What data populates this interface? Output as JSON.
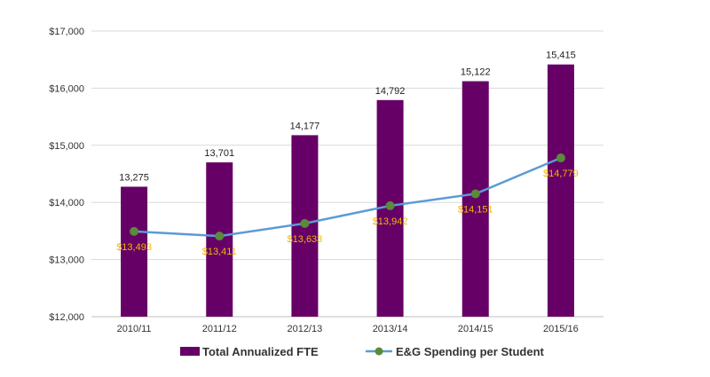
{
  "chart_data": {
    "type": "bar+line",
    "categories": [
      "2010/11",
      "2011/12",
      "2012/13",
      "2013/14",
      "2014/15",
      "2015/16"
    ],
    "series": [
      {
        "name": "Total Annualized FTE",
        "type": "bar",
        "values": [
          13275,
          13701,
          14177,
          14792,
          15122,
          15415
        ],
        "labels": [
          "13,275",
          "13,701",
          "14,177",
          "14,792",
          "15,122",
          "15,415"
        ],
        "color": "#660066"
      },
      {
        "name": "E&G Spending per Student",
        "type": "line",
        "values": [
          13493,
          13411,
          13633,
          13942,
          14151,
          14779
        ],
        "labels": [
          "$13,493",
          "$13,411",
          "$13,633",
          "$13,942",
          "$14,151",
          "$14,779"
        ],
        "line_color": "#5b9bd5",
        "marker_color": "#5a8a3a",
        "label_color": "#f2b705"
      }
    ],
    "bar_axis_range": [
      11000,
      16000
    ],
    "y_axis": {
      "min": 12000,
      "max": 17000,
      "ticks": [
        12000,
        13000,
        14000,
        15000,
        16000,
        17000
      ],
      "tick_labels": [
        "$12,000",
        "$13,000",
        "$14,000",
        "$15,000",
        "$16,000",
        "$17,000"
      ]
    },
    "grid": true,
    "legend": "bottom-center"
  }
}
